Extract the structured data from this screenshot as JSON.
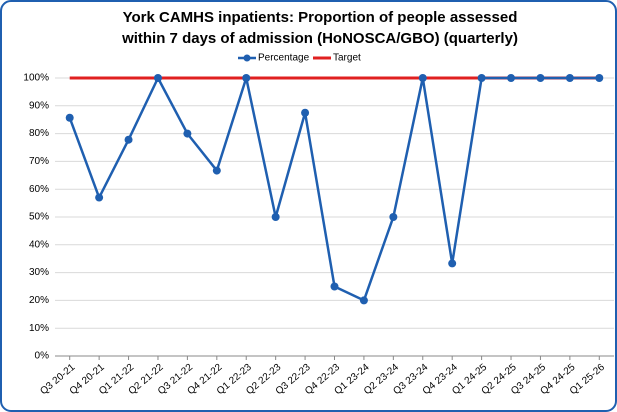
{
  "chart_data": {
    "type": "line",
    "title": [
      "York CAMHS inpatients: Proportion of people assessed",
      "within 7 days of admission (HoNOSCA/GBO) (quarterly)"
    ],
    "categories": [
      "Q3 20-21",
      "Q4 20-21",
      "Q1 21-22",
      "Q2 21-22",
      "Q3 21-22",
      "Q4 21-22",
      "Q1 22-23",
      "Q2 22-23",
      "Q3 22-23",
      "Q4 22-23",
      "Q1 23-24",
      "Q2 23-24",
      "Q3 23-24",
      "Q4 23-24",
      "Q1 24-25",
      "Q2 24-25",
      "Q3 24-25",
      "Q4 24-25",
      "Q1 25-26"
    ],
    "series": [
      {
        "name": "Percentage",
        "color": "#1f5fb0",
        "values": [
          85.7,
          57,
          77.8,
          100,
          80,
          66.7,
          100,
          50,
          87.5,
          25,
          20,
          50,
          100,
          33.3,
          100,
          100,
          100,
          100,
          100
        ]
      },
      {
        "name": "Target",
        "color": "#e02020",
        "values": [
          100,
          100,
          100,
          100,
          100,
          100,
          100,
          100,
          100,
          100,
          100,
          100,
          100,
          100,
          100,
          100,
          100,
          100,
          100
        ]
      }
    ],
    "ylim": [
      0,
      100
    ],
    "yticks": [
      {
        "value": 0,
        "label": "0%"
      },
      {
        "value": 10,
        "label": "10%"
      },
      {
        "value": 20,
        "label": "20%"
      },
      {
        "value": 30,
        "label": "30%"
      },
      {
        "value": 40,
        "label": "40%"
      },
      {
        "value": 50,
        "label": "50%"
      },
      {
        "value": 60,
        "label": "60%"
      },
      {
        "value": 70,
        "label": "70%"
      },
      {
        "value": 80,
        "label": "80%"
      },
      {
        "value": 90,
        "label": "90%"
      },
      {
        "value": 100,
        "label": "100%"
      }
    ],
    "grid": true
  }
}
